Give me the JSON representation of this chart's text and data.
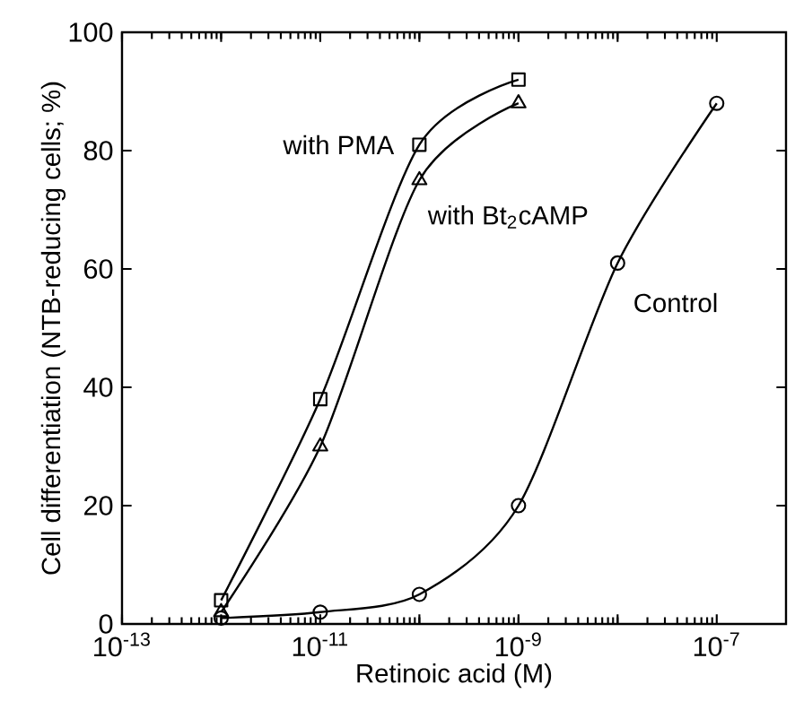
{
  "chart_data": {
    "type": "line",
    "xlabel": "Retinoic acid (M)",
    "ylabel": "Cell differentiation (NTB-reducing cells; %)",
    "log": "x",
    "xlim": [
      1e-13,
      5e-07
    ],
    "ylim": [
      0,
      100
    ],
    "xticks": [
      {
        "value": 1e-13,
        "label": "10$^{-13}$"
      },
      {
        "value": 1e-12,
        "label": null
      },
      {
        "value": 1e-11,
        "label": "10$^{-11}$"
      },
      {
        "value": 1e-10,
        "label": null
      },
      {
        "value": 1e-09,
        "label": "10$^{-9}$"
      },
      {
        "value": 1e-08,
        "label": null
      },
      {
        "value": 1e-07,
        "label": "10$^{-7}$"
      }
    ],
    "yticks": [
      0,
      20,
      40,
      60,
      80,
      100
    ],
    "series": [
      {
        "name": "with PMA",
        "color": "#000000",
        "marker": "square",
        "x": [
          1e-12,
          1e-11,
          1e-10,
          1e-09
        ],
        "values": [
          4,
          38,
          81,
          92
        ]
      },
      {
        "name": "with Bt$_{2}$cAMP",
        "color": "#000000",
        "marker": "triangle",
        "x": [
          1e-12,
          1e-11,
          1e-10,
          1e-09
        ],
        "values": [
          2,
          30,
          75,
          88
        ]
      },
      {
        "name": "Control",
        "color": "#000000",
        "marker": "circle",
        "x": [
          1e-12,
          1e-11,
          1e-10,
          1e-09,
          1e-08,
          1e-07
        ],
        "values": [
          1,
          2,
          5,
          20,
          61,
          88
        ]
      }
    ]
  }
}
